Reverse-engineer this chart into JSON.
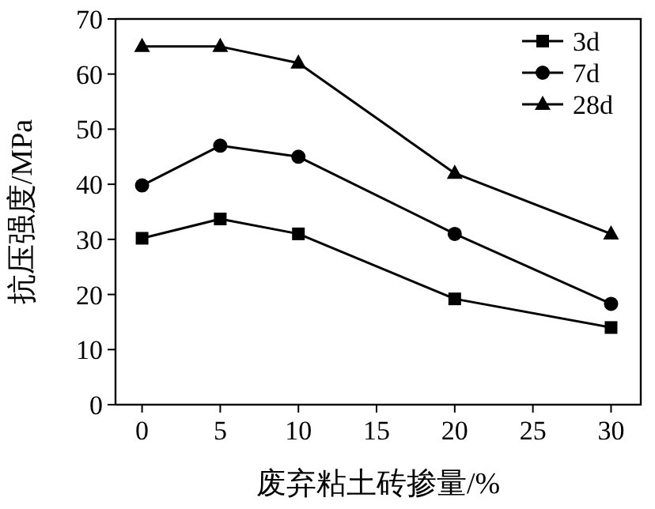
{
  "chart_data": {
    "type": "line",
    "xlabel": "废弃粘土砖掺量/%",
    "ylabel": "抗压强度/MPa",
    "x": [
      0,
      5,
      10,
      20,
      30
    ],
    "xlim": [
      -1.7,
      31.9
    ],
    "xticks": [
      0,
      5,
      10,
      15,
      20,
      25,
      30
    ],
    "ylim": [
      0,
      70
    ],
    "yticks": [
      0,
      10,
      20,
      30,
      40,
      50,
      60,
      70
    ],
    "legend": "top right",
    "grid": false,
    "line_style": "solid",
    "series": [
      {
        "name": "3d",
        "color": "#000000",
        "marker": "square",
        "values": [
          30.2,
          33.7,
          31,
          19.2,
          14
        ]
      },
      {
        "name": "7d",
        "color": "#000000",
        "marker": "circle",
        "values": [
          39.8,
          47,
          45,
          31,
          18.3
        ]
      },
      {
        "name": "28d",
        "color": "#000000",
        "marker": "triangle",
        "values": [
          65,
          65,
          62,
          42,
          31
        ]
      }
    ]
  }
}
